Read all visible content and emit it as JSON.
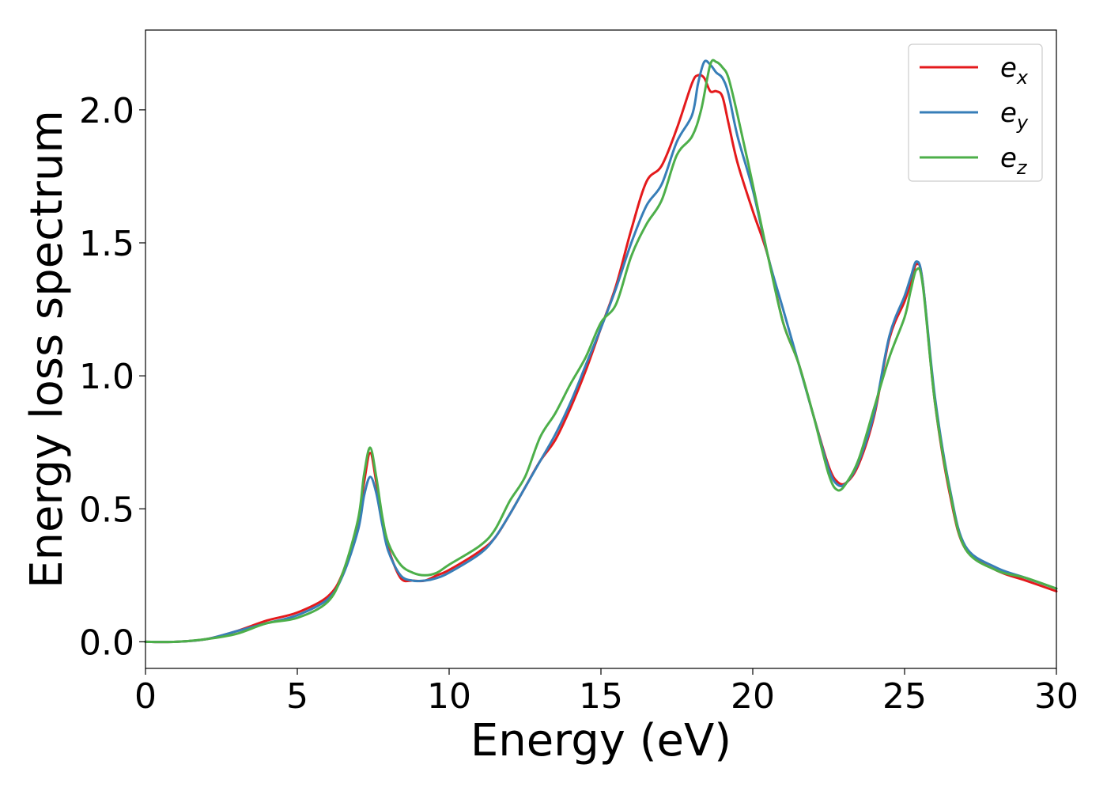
{
  "chart_data": {
    "type": "line",
    "title": "",
    "xlabel": "Energy (eV)",
    "ylabel": "Energy loss spectrum",
    "xlim": [
      0,
      30
    ],
    "ylim": [
      -0.1,
      2.3
    ],
    "xticks": [
      0,
      5,
      10,
      15,
      20,
      25,
      30
    ],
    "xtick_labels": [
      "0",
      "5",
      "10",
      "15",
      "20",
      "25",
      "30"
    ],
    "yticks": [
      0.0,
      0.5,
      1.0,
      1.5,
      2.0
    ],
    "ytick_labels": [
      "0.0",
      "0.5",
      "1.0",
      "1.5",
      "2.0"
    ],
    "grid": false,
    "legend_position": "top-right",
    "series": [
      {
        "name": "e",
        "subscript": "x",
        "color": "#e41a1c",
        "x": [
          0,
          1,
          2,
          3,
          4,
          5,
          6,
          6.5,
          7,
          7.2,
          7.4,
          7.6,
          7.8,
          8,
          8.4,
          8.8,
          9.2,
          9.6,
          10,
          11,
          11.5,
          12,
          12.5,
          13,
          13.5,
          14,
          14.5,
          15,
          15.5,
          16,
          16.5,
          17,
          17.5,
          18,
          18.2,
          18.4,
          18.6,
          18.8,
          19,
          19.2,
          19.5,
          20,
          20.5,
          21,
          21.5,
          22,
          22.5,
          22.8,
          23.1,
          23.5,
          24,
          24.5,
          25,
          25.2,
          25.4,
          25.6,
          26,
          26.5,
          27,
          28,
          29,
          30
        ],
        "y": [
          0,
          0,
          0.01,
          0.04,
          0.08,
          0.11,
          0.17,
          0.26,
          0.45,
          0.6,
          0.71,
          0.6,
          0.45,
          0.35,
          0.24,
          0.23,
          0.23,
          0.25,
          0.27,
          0.34,
          0.39,
          0.48,
          0.58,
          0.68,
          0.76,
          0.88,
          1.02,
          1.18,
          1.34,
          1.55,
          1.73,
          1.79,
          1.93,
          2.1,
          2.13,
          2.12,
          2.07,
          2.07,
          2.05,
          1.95,
          1.8,
          1.62,
          1.45,
          1.2,
          1.05,
          0.85,
          0.66,
          0.6,
          0.6,
          0.67,
          0.85,
          1.14,
          1.28,
          1.35,
          1.42,
          1.35,
          0.9,
          0.55,
          0.35,
          0.27,
          0.23,
          0.19
        ]
      },
      {
        "name": "e",
        "subscript": "y",
        "color": "#377eb8",
        "x": [
          0,
          1,
          2,
          3,
          4,
          5,
          6,
          6.5,
          7,
          7.2,
          7.4,
          7.6,
          7.8,
          8,
          8.4,
          8.8,
          9.2,
          9.6,
          10,
          11,
          11.5,
          12,
          12.5,
          13,
          13.5,
          14,
          14.5,
          15,
          15.5,
          16,
          16.5,
          17,
          17.5,
          18,
          18.2,
          18.4,
          18.6,
          18.8,
          19,
          19.2,
          19.5,
          20,
          20.5,
          21,
          21.5,
          22,
          22.5,
          22.8,
          23.1,
          23.5,
          24,
          24.5,
          25,
          25.2,
          25.4,
          25.6,
          26,
          26.5,
          27,
          28,
          29,
          30
        ],
        "y": [
          0,
          0,
          0.01,
          0.04,
          0.07,
          0.1,
          0.16,
          0.25,
          0.42,
          0.55,
          0.62,
          0.56,
          0.44,
          0.34,
          0.25,
          0.23,
          0.23,
          0.24,
          0.26,
          0.33,
          0.39,
          0.48,
          0.58,
          0.68,
          0.78,
          0.9,
          1.04,
          1.18,
          1.33,
          1.5,
          1.64,
          1.72,
          1.88,
          1.98,
          2.1,
          2.18,
          2.17,
          2.14,
          2.12,
          2.06,
          1.9,
          1.7,
          1.45,
          1.25,
          1.05,
          0.85,
          0.65,
          0.59,
          0.6,
          0.68,
          0.86,
          1.15,
          1.3,
          1.37,
          1.43,
          1.35,
          0.92,
          0.57,
          0.36,
          0.28,
          0.24,
          0.2
        ]
      },
      {
        "name": "e",
        "subscript": "z",
        "color": "#4daf4a",
        "x": [
          0,
          1,
          2,
          3,
          4,
          5,
          6,
          6.5,
          7,
          7.2,
          7.4,
          7.6,
          7.8,
          8,
          8.4,
          8.8,
          9.2,
          9.6,
          10,
          11,
          11.5,
          12,
          12.5,
          13,
          13.5,
          14,
          14.5,
          15,
          15.5,
          16,
          16.5,
          17,
          17.5,
          18,
          18.3,
          18.6,
          18.8,
          19,
          19.2,
          19.5,
          20,
          20.5,
          21,
          21.5,
          22,
          22.5,
          22.8,
          23.1,
          23.5,
          24,
          24.5,
          25,
          25.2,
          25.4,
          25.6,
          26,
          26.5,
          27,
          28,
          29,
          30
        ],
        "y": [
          0,
          0,
          0.01,
          0.03,
          0.07,
          0.09,
          0.15,
          0.26,
          0.46,
          0.63,
          0.73,
          0.62,
          0.47,
          0.37,
          0.29,
          0.26,
          0.25,
          0.26,
          0.29,
          0.36,
          0.42,
          0.53,
          0.62,
          0.77,
          0.86,
          0.97,
          1.07,
          1.2,
          1.27,
          1.45,
          1.57,
          1.66,
          1.83,
          1.9,
          2.0,
          2.17,
          2.18,
          2.16,
          2.12,
          1.98,
          1.72,
          1.45,
          1.2,
          1.05,
          0.85,
          0.63,
          0.57,
          0.6,
          0.69,
          0.88,
          1.07,
          1.22,
          1.32,
          1.4,
          1.34,
          0.9,
          0.56,
          0.35,
          0.27,
          0.24,
          0.2
        ]
      }
    ]
  }
}
